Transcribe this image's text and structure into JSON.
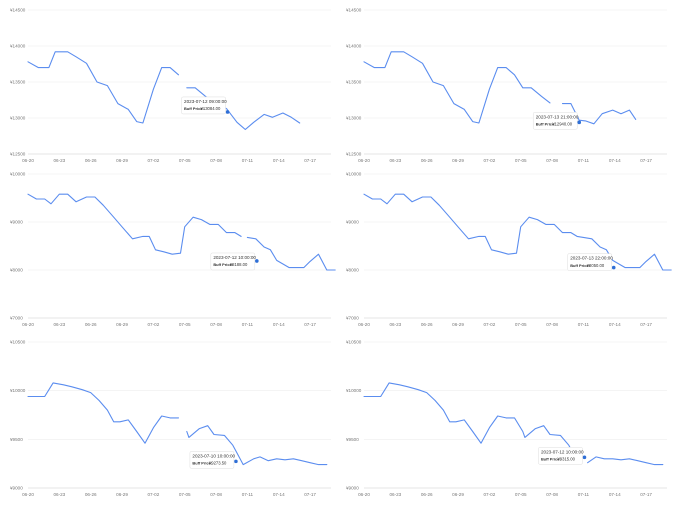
{
  "chart_data": [
    {
      "type": "line",
      "ylim": [
        12500,
        14500
      ],
      "yticks": [
        "¥12500",
        "¥13000",
        "¥13500",
        "¥14000",
        "¥14500"
      ],
      "xticks": [
        "06-20",
        "06-23",
        "06-26",
        "06-29",
        "07-02",
        "07-05",
        "07-08",
        "07-11",
        "07-14",
        "07-17"
      ],
      "x_range": [
        0,
        29
      ],
      "series": [
        {
          "points": [
            [
              0,
              13780
            ],
            [
              1,
              13700
            ],
            [
              2,
              13700
            ],
            [
              2.6,
              13920
            ],
            [
              3.8,
              13920
            ],
            [
              4.6,
              13850
            ],
            [
              5.6,
              13760
            ],
            [
              6.6,
              13500
            ],
            [
              7.6,
              13450
            ],
            [
              8.6,
              13200
            ],
            [
              9.6,
              13120
            ],
            [
              10.4,
              12950
            ],
            [
              11,
              12930
            ],
            [
              12,
              13400
            ],
            [
              12.8,
              13700
            ],
            [
              13.6,
              13700
            ],
            [
              14.4,
              13600
            ],
            [
              15.2,
              13420
            ],
            [
              16,
              13420
            ],
            [
              17,
              13300
            ],
            [
              17.8,
              13210
            ],
            [
              19,
              13130
            ],
            [
              20,
              12940
            ],
            [
              20.8,
              12840
            ],
            [
              21.6,
              12940
            ],
            [
              22.6,
              13050
            ],
            [
              23.4,
              13010
            ],
            [
              24.4,
              13070
            ],
            [
              25.2,
              13010
            ],
            [
              26,
              12930
            ]
          ],
          "gap_after_index": [
            16
          ]
        }
      ],
      "tooltip": {
        "time": "2023-07-12 09:00:00",
        "label": "Buff Price:",
        "value": "¥13084.00",
        "x": 19.1,
        "y": 13084
      }
    },
    {
      "type": "line",
      "ylim": [
        12500,
        14500
      ],
      "yticks": [
        "¥12500",
        "¥13000",
        "¥13500",
        "¥14000",
        "¥14500"
      ],
      "xticks": [
        "06-20",
        "06-23",
        "06-26",
        "06-29",
        "07-02",
        "07-05",
        "07-08",
        "07-11",
        "07-14",
        "07-17"
      ],
      "x_range": [
        0,
        29
      ],
      "series": [
        {
          "points": [
            [
              0,
              13780
            ],
            [
              1,
              13700
            ],
            [
              2,
              13700
            ],
            [
              2.6,
              13920
            ],
            [
              3.8,
              13920
            ],
            [
              4.6,
              13850
            ],
            [
              5.6,
              13760
            ],
            [
              6.6,
              13500
            ],
            [
              7.6,
              13450
            ],
            [
              8.6,
              13200
            ],
            [
              9.6,
              13120
            ],
            [
              10.4,
              12950
            ],
            [
              11,
              12930
            ],
            [
              12,
              13400
            ],
            [
              12.8,
              13700
            ],
            [
              13.6,
              13700
            ],
            [
              14.4,
              13600
            ],
            [
              15.2,
              13420
            ],
            [
              16,
              13420
            ],
            [
              17,
              13300
            ],
            [
              17.8,
              13210
            ],
            [
              19,
              13200
            ],
            [
              19.8,
              13200
            ],
            [
              20.6,
              12970
            ],
            [
              21.2,
              12960
            ],
            [
              22,
              12920
            ],
            [
              22.8,
              13060
            ],
            [
              23.8,
              13110
            ],
            [
              24.6,
              13060
            ],
            [
              25.4,
              13110
            ],
            [
              26,
              12980
            ]
          ],
          "gap_after_index": [
            20
          ]
        }
      ],
      "tooltip": {
        "time": "2023-07-13 21:00:00",
        "label": "Buff Price:",
        "value": "¥12940.00",
        "x": 20.6,
        "y": 12940
      }
    },
    {
      "type": "line",
      "ylim": [
        7000,
        10000
      ],
      "yticks": [
        "¥7000",
        "¥8000",
        "¥9000",
        "¥10000"
      ],
      "xticks": [
        "06-20",
        "06-23",
        "06-26",
        "06-29",
        "07-02",
        "07-05",
        "07-08",
        "07-11",
        "07-14",
        "07-17"
      ],
      "x_range": [
        0,
        29
      ],
      "series": [
        {
          "points": [
            [
              0,
              9580
            ],
            [
              0.8,
              9480
            ],
            [
              1.6,
              9480
            ],
            [
              2.2,
              9380
            ],
            [
              3,
              9580
            ],
            [
              3.8,
              9580
            ],
            [
              4.6,
              9420
            ],
            [
              5.6,
              9520
            ],
            [
              6.4,
              9520
            ],
            [
              7.2,
              9350
            ],
            [
              8.2,
              9100
            ],
            [
              9,
              8900
            ],
            [
              10,
              8650
            ],
            [
              11,
              8700
            ],
            [
              11.6,
              8700
            ],
            [
              12.2,
              8420
            ],
            [
              13,
              8380
            ],
            [
              13.8,
              8330
            ],
            [
              14.6,
              8350
            ],
            [
              15,
              8900
            ],
            [
              15.8,
              9100
            ],
            [
              16.6,
              9050
            ],
            [
              17.4,
              8950
            ],
            [
              18.2,
              8950
            ],
            [
              19,
              8780
            ],
            [
              19.8,
              8780
            ],
            [
              20.4,
              8700
            ],
            [
              21,
              8680
            ],
            [
              21.8,
              8650
            ],
            [
              22.6,
              8480
            ],
            [
              23.2,
              8420
            ],
            [
              23.8,
              8200
            ],
            [
              25,
              8050
            ],
            [
              26.4,
              8050
            ],
            [
              27,
              8180
            ],
            [
              27.8,
              8330
            ],
            [
              28.6,
              8000
            ],
            [
              29.4,
              8000
            ]
          ],
          "gap_after_index": [
            26
          ]
        }
      ],
      "tooltip": {
        "time": "2023-07-12 10:00:00",
        "label": "Buff Price:",
        "value": "¥8188.00",
        "x": 21.9,
        "y": 8188
      }
    },
    {
      "type": "line",
      "ylim": [
        7000,
        10000
      ],
      "yticks": [
        "¥7000",
        "¥8000",
        "¥9000",
        "¥10000"
      ],
      "xticks": [
        "06-20",
        "06-23",
        "06-26",
        "06-29",
        "07-02",
        "07-05",
        "07-08",
        "07-11",
        "07-14",
        "07-17"
      ],
      "x_range": [
        0,
        29
      ],
      "series": [
        {
          "points": [
            [
              0,
              9580
            ],
            [
              0.8,
              9480
            ],
            [
              1.6,
              9480
            ],
            [
              2.2,
              9380
            ],
            [
              3,
              9580
            ],
            [
              3.8,
              9580
            ],
            [
              4.6,
              9420
            ],
            [
              5.6,
              9520
            ],
            [
              6.4,
              9520
            ],
            [
              7.2,
              9350
            ],
            [
              8.2,
              9100
            ],
            [
              9,
              8900
            ],
            [
              10,
              8650
            ],
            [
              11,
              8700
            ],
            [
              11.6,
              8700
            ],
            [
              12.2,
              8420
            ],
            [
              13,
              8380
            ],
            [
              13.8,
              8330
            ],
            [
              14.6,
              8350
            ],
            [
              15,
              8900
            ],
            [
              15.8,
              9100
            ],
            [
              16.6,
              9050
            ],
            [
              17.4,
              8950
            ],
            [
              18.2,
              8950
            ],
            [
              19,
              8780
            ],
            [
              19.8,
              8780
            ],
            [
              20.4,
              8700
            ],
            [
              21,
              8680
            ],
            [
              21.8,
              8650
            ],
            [
              22.6,
              8480
            ],
            [
              23.2,
              8420
            ],
            [
              23.8,
              8200
            ],
            [
              25,
              8050
            ],
            [
              26.4,
              8050
            ],
            [
              27,
              8180
            ],
            [
              27.8,
              8330
            ],
            [
              28.6,
              8000
            ],
            [
              29.4,
              8000
            ]
          ],
          "gap_after_index": []
        }
      ],
      "tooltip": {
        "time": "2023-07-13 22:00:00",
        "label": "Buff Price:",
        "value": "¥8050.00",
        "x": 23.9,
        "y": 8050
      }
    },
    {
      "type": "line",
      "ylim": [
        9000,
        10500
      ],
      "yticks": [
        "¥9000",
        "¥9500",
        "¥10000",
        "¥10500"
      ],
      "xticks": [
        "06-20",
        "06-23",
        "06-26",
        "06-29",
        "07-02",
        "07-05",
        "07-08",
        "07-11",
        "07-14",
        "07-17"
      ],
      "x_range": [
        0,
        29
      ],
      "series": [
        {
          "points": [
            [
              0,
              9940
            ],
            [
              1.6,
              9940
            ],
            [
              2.4,
              10080
            ],
            [
              3.4,
              10060
            ],
            [
              4.2,
              10040
            ],
            [
              5.2,
              10010
            ],
            [
              6,
              9980
            ],
            [
              6.8,
              9900
            ],
            [
              7.6,
              9800
            ],
            [
              8.2,
              9680
            ],
            [
              8.8,
              9680
            ],
            [
              9.6,
              9700
            ],
            [
              10.4,
              9580
            ],
            [
              11.2,
              9460
            ],
            [
              12,
              9620
            ],
            [
              12.8,
              9740
            ],
            [
              13.6,
              9720
            ],
            [
              14.4,
              9720
            ],
            [
              15.2,
              9580
            ],
            [
              15.4,
              9520
            ],
            [
              16.4,
              9610
            ],
            [
              17.2,
              9640
            ],
            [
              17.8,
              9550
            ],
            [
              18.8,
              9540
            ],
            [
              19.6,
              9440
            ],
            [
              20,
              9360
            ],
            [
              20.6,
              9240
            ],
            [
              21.6,
              9300
            ],
            [
              22.2,
              9320
            ],
            [
              23,
              9280
            ],
            [
              23.8,
              9300
            ],
            [
              24.6,
              9290
            ],
            [
              25.4,
              9300
            ],
            [
              26.2,
              9280
            ],
            [
              27,
              9260
            ],
            [
              27.8,
              9240
            ],
            [
              28.6,
              9240
            ]
          ],
          "gap_after_index": [
            17
          ]
        }
      ],
      "tooltip": {
        "time": "2023-07-10 10:00:00",
        "label": "Buff Price:",
        "value": "¥9273.50",
        "x": 19.9,
        "y": 9273.5
      }
    },
    {
      "type": "line",
      "ylim": [
        9000,
        10500
      ],
      "yticks": [
        "¥9000",
        "¥9500",
        "¥10000",
        "¥10500"
      ],
      "xticks": [
        "06-20",
        "06-23",
        "06-26",
        "06-29",
        "07-02",
        "07-05",
        "07-08",
        "07-11",
        "07-14",
        "07-17"
      ],
      "x_range": [
        0,
        29
      ],
      "series": [
        {
          "points": [
            [
              0,
              9940
            ],
            [
              1.6,
              9940
            ],
            [
              2.4,
              10080
            ],
            [
              3.4,
              10060
            ],
            [
              4.2,
              10040
            ],
            [
              5.2,
              10010
            ],
            [
              6,
              9980
            ],
            [
              6.8,
              9900
            ],
            [
              7.6,
              9800
            ],
            [
              8.2,
              9680
            ],
            [
              8.8,
              9680
            ],
            [
              9.6,
              9700
            ],
            [
              10.4,
              9580
            ],
            [
              11.2,
              9460
            ],
            [
              12,
              9620
            ],
            [
              12.8,
              9740
            ],
            [
              13.6,
              9720
            ],
            [
              14.4,
              9720
            ],
            [
              15.2,
              9580
            ],
            [
              15.4,
              9520
            ],
            [
              16.4,
              9610
            ],
            [
              17.2,
              9640
            ],
            [
              17.8,
              9550
            ],
            [
              18.8,
              9540
            ],
            [
              19.6,
              9440
            ],
            [
              20,
              9360
            ],
            [
              21.4,
              9260
            ],
            [
              22.2,
              9320
            ],
            [
              23,
              9300
            ],
            [
              23.8,
              9300
            ],
            [
              24.6,
              9290
            ],
            [
              25.4,
              9300
            ],
            [
              26.2,
              9280
            ],
            [
              27,
              9260
            ],
            [
              27.8,
              9240
            ],
            [
              28.6,
              9240
            ]
          ],
          "gap_after_index": [
            25
          ]
        }
      ],
      "tooltip": {
        "time": "2023-07-12 10:00:00",
        "label": "Buff Price:",
        "value": "¥9315.00",
        "x": 21.1,
        "y": 9315
      }
    }
  ]
}
